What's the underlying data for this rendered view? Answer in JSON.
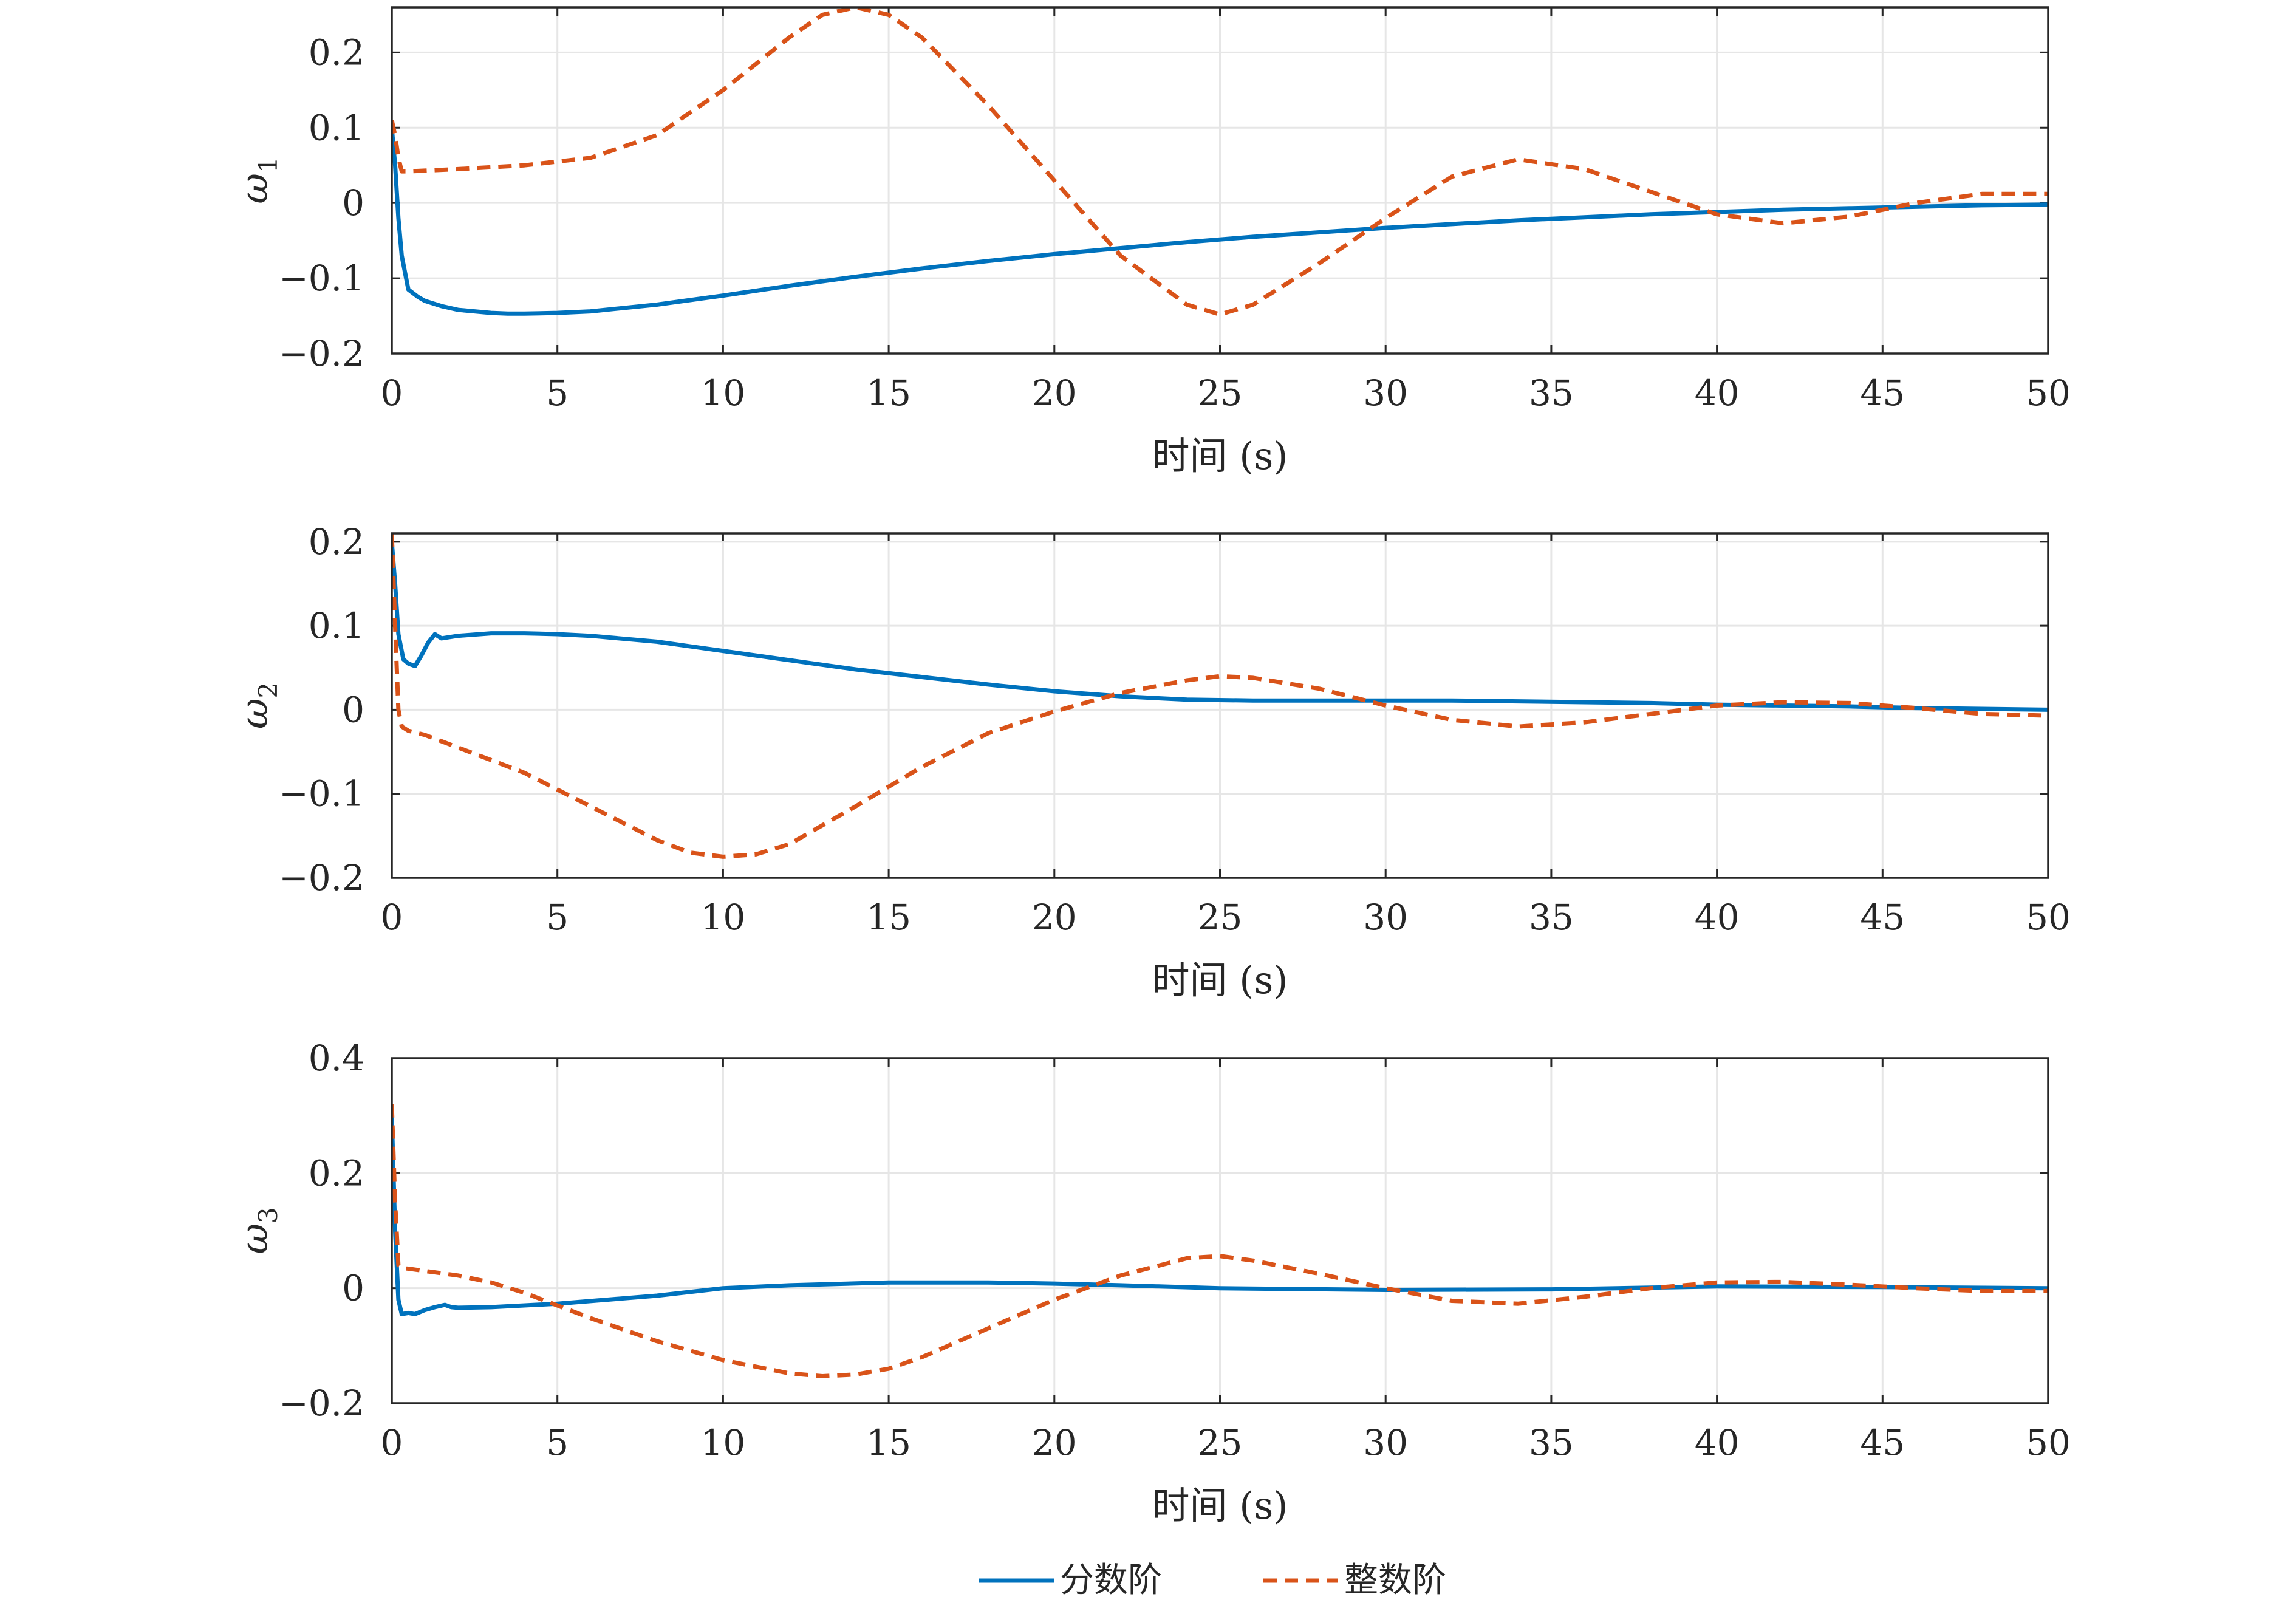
{
  "chart_data": [
    {
      "type": "line",
      "ylabel": "ω",
      "ylabel_sub": "1",
      "xlabel": "时间 (s)",
      "xlim": [
        0,
        50
      ],
      "ylim": [
        -0.2,
        0.26
      ],
      "xticks": [
        "0",
        "5",
        "10",
        "15",
        "20",
        "25",
        "30",
        "35",
        "40",
        "45",
        "50"
      ],
      "yticks": [
        {
          "v": -0.2,
          "label": "−0.2"
        },
        {
          "v": -0.1,
          "label": "−0.1"
        },
        {
          "v": 0,
          "label": "0"
        },
        {
          "v": 0.1,
          "label": "0.1"
        },
        {
          "v": 0.2,
          "label": "0.2"
        }
      ],
      "grid": true,
      "series": [
        {
          "name": "分数阶",
          "color": "#0072BD",
          "dash": "solid",
          "x": [
            0,
            0.1,
            0.2,
            0.3,
            0.5,
            0.8,
            1,
            1.5,
            2,
            3,
            3.5,
            4,
            5,
            6,
            8,
            10,
            12,
            14,
            16,
            18,
            20,
            22,
            24,
            26,
            28,
            30,
            32,
            34,
            36,
            38,
            40,
            42,
            44,
            46,
            48,
            50
          ],
          "y": [
            0.1,
            0.05,
            -0.02,
            -0.07,
            -0.115,
            -0.125,
            -0.13,
            -0.137,
            -0.142,
            -0.146,
            -0.147,
            -0.147,
            -0.146,
            -0.144,
            -0.135,
            -0.123,
            -0.11,
            -0.098,
            -0.087,
            -0.077,
            -0.068,
            -0.06,
            -0.052,
            -0.045,
            -0.039,
            -0.033,
            -0.028,
            -0.023,
            -0.019,
            -0.015,
            -0.012,
            -0.009,
            -0.007,
            -0.005,
            -0.003,
            -0.002
          ]
        },
        {
          "name": "整数阶",
          "color": "#D95319",
          "dash": "dashed",
          "x": [
            0,
            0.1,
            0.2,
            0.3,
            0.5,
            1,
            2,
            4,
            6,
            8,
            10,
            12,
            13,
            14,
            15,
            16,
            18,
            20,
            22,
            24,
            25,
            26,
            28,
            30,
            32,
            34,
            36,
            38,
            40,
            42,
            44,
            46,
            48,
            50
          ],
          "y": [
            0.11,
            0.09,
            0.06,
            0.042,
            0.042,
            0.043,
            0.045,
            0.05,
            0.06,
            0.09,
            0.15,
            0.22,
            0.25,
            0.26,
            0.25,
            0.22,
            0.13,
            0.03,
            -0.07,
            -0.135,
            -0.148,
            -0.135,
            -0.08,
            -0.02,
            0.035,
            0.058,
            0.045,
            0.015,
            -0.015,
            -0.027,
            -0.018,
            0.0,
            0.012,
            0.012
          ]
        }
      ]
    },
    {
      "type": "line",
      "ylabel": "ω",
      "ylabel_sub": "2",
      "xlabel": "时间 (s)",
      "xlim": [
        0,
        50
      ],
      "ylim": [
        -0.2,
        0.21
      ],
      "xticks": [
        "0",
        "5",
        "10",
        "15",
        "20",
        "25",
        "30",
        "35",
        "40",
        "45",
        "50"
      ],
      "yticks": [
        {
          "v": -0.2,
          "label": "−0.2"
        },
        {
          "v": -0.1,
          "label": "−0.1"
        },
        {
          "v": 0,
          "label": "0"
        },
        {
          "v": 0.1,
          "label": "0.1"
        },
        {
          "v": 0.2,
          "label": "0.2"
        }
      ],
      "grid": true,
      "series": [
        {
          "name": "分数阶",
          "color": "#0072BD",
          "dash": "solid",
          "x": [
            0,
            0.1,
            0.2,
            0.35,
            0.5,
            0.7,
            0.9,
            1.1,
            1.3,
            1.5,
            2,
            3,
            4,
            5,
            6,
            8,
            10,
            12,
            14,
            16,
            18,
            20,
            22,
            24,
            26,
            28,
            30,
            32,
            34,
            36,
            38,
            40,
            42,
            44,
            46,
            48,
            50
          ],
          "y": [
            0.2,
            0.15,
            0.09,
            0.06,
            0.055,
            0.052,
            0.065,
            0.08,
            0.09,
            0.085,
            0.088,
            0.091,
            0.091,
            0.09,
            0.088,
            0.081,
            0.07,
            0.059,
            0.048,
            0.039,
            0.03,
            0.022,
            0.016,
            0.012,
            0.011,
            0.011,
            0.011,
            0.011,
            0.01,
            0.009,
            0.008,
            0.006,
            0.005,
            0.004,
            0.002,
            0.001,
            0.0
          ]
        },
        {
          "name": "整数阶",
          "color": "#D95319",
          "dash": "dashed",
          "x": [
            0,
            0.1,
            0.2,
            0.3,
            0.5,
            1,
            2,
            4,
            6,
            8,
            9,
            10,
            11,
            12,
            14,
            16,
            18,
            20,
            22,
            24,
            25,
            26,
            28,
            30,
            32,
            34,
            36,
            38,
            40,
            42,
            44,
            46,
            48,
            50
          ],
          "y": [
            0.21,
            0.1,
            0.0,
            -0.02,
            -0.025,
            -0.03,
            -0.045,
            -0.075,
            -0.115,
            -0.155,
            -0.17,
            -0.175,
            -0.172,
            -0.16,
            -0.115,
            -0.068,
            -0.028,
            -0.002,
            0.02,
            0.035,
            0.04,
            0.038,
            0.025,
            0.005,
            -0.012,
            -0.02,
            -0.015,
            -0.005,
            0.005,
            0.009,
            0.008,
            0.002,
            -0.005,
            -0.007
          ]
        }
      ]
    },
    {
      "type": "line",
      "ylabel": "ω",
      "ylabel_sub": "3",
      "xlabel": "时间 (s)",
      "xlim": [
        0,
        50
      ],
      "ylim": [
        -0.2,
        0.4
      ],
      "xticks": [
        "0",
        "5",
        "10",
        "15",
        "20",
        "25",
        "30",
        "35",
        "40",
        "45",
        "50"
      ],
      "yticks": [
        {
          "v": -0.2,
          "label": "−0.2"
        },
        {
          "v": 0,
          "label": "0"
        },
        {
          "v": 0.2,
          "label": "0.2"
        },
        {
          "v": 0.4,
          "label": "0.4"
        }
      ],
      "grid": true,
      "series": [
        {
          "name": "分数阶",
          "color": "#0072BD",
          "dash": "solid",
          "x": [
            0,
            0.1,
            0.2,
            0.3,
            0.5,
            0.7,
            1,
            1.3,
            1.6,
            1.8,
            2,
            3,
            5,
            8,
            10,
            12,
            15,
            18,
            20,
            22,
            25,
            30,
            35,
            40,
            45,
            50
          ],
          "y": [
            0.3,
            0.1,
            -0.02,
            -0.045,
            -0.043,
            -0.045,
            -0.038,
            -0.033,
            -0.029,
            -0.033,
            -0.034,
            -0.033,
            -0.027,
            -0.013,
            0.0,
            0.005,
            0.01,
            0.01,
            0.008,
            0.005,
            0.0,
            -0.003,
            -0.002,
            0.003,
            0.002,
            0.0
          ]
        },
        {
          "name": "整数阶",
          "color": "#D95319",
          "dash": "dashed",
          "x": [
            0,
            0.1,
            0.2,
            0.3,
            0.5,
            1,
            2,
            3,
            4,
            5,
            6,
            8,
            10,
            12,
            13,
            14,
            15,
            16,
            18,
            20,
            22,
            24,
            25,
            26,
            28,
            30,
            32,
            34,
            36,
            38,
            40,
            42,
            44,
            46,
            48,
            50
          ],
          "y": [
            0.32,
            0.15,
            0.04,
            0.035,
            0.034,
            0.03,
            0.022,
            0.01,
            -0.008,
            -0.03,
            -0.052,
            -0.092,
            -0.125,
            -0.148,
            -0.153,
            -0.15,
            -0.14,
            -0.12,
            -0.07,
            -0.02,
            0.022,
            0.052,
            0.056,
            0.048,
            0.025,
            0.0,
            -0.022,
            -0.027,
            -0.015,
            0.0,
            0.01,
            0.011,
            0.006,
            0.0,
            -0.005,
            -0.005
          ]
        }
      ]
    }
  ],
  "legend": {
    "placement": "bottom-center",
    "items": [
      {
        "label": "分数阶",
        "color": "#0072BD",
        "dash": "solid"
      },
      {
        "label": "整数阶",
        "color": "#D95319",
        "dash": "dashed"
      }
    ]
  }
}
